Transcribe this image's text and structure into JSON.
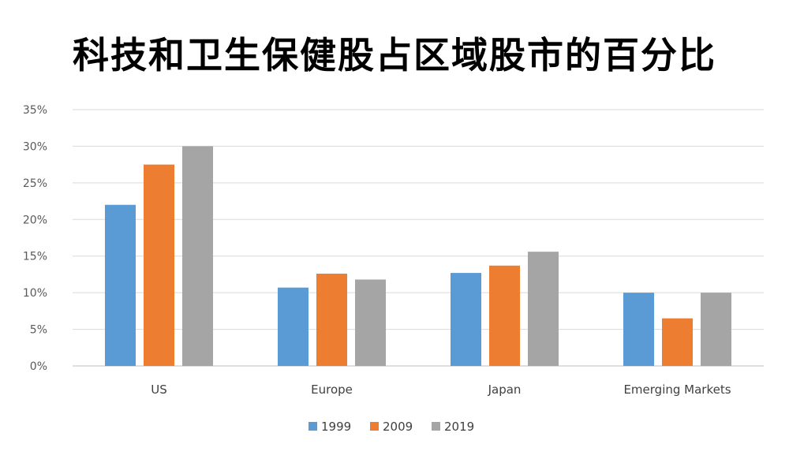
{
  "chart_data": {
    "type": "bar",
    "title": "科技和卫生保健股占区域股市的百分比",
    "categories": [
      "US",
      "Europe",
      "Japan",
      "Emerging Markets"
    ],
    "series": [
      {
        "name": "1999",
        "color": "#5b9bd5",
        "values": [
          22,
          10.7,
          12.7,
          10
        ]
      },
      {
        "name": "2009",
        "color": "#ed7d31",
        "values": [
          27.5,
          12.6,
          13.7,
          6.5
        ]
      },
      {
        "name": "2019",
        "color": "#a5a5a5",
        "values": [
          30,
          11.8,
          15.6,
          10
        ]
      }
    ],
    "yticks": [
      "0%",
      "5%",
      "10%",
      "15%",
      "20%",
      "25%",
      "30%",
      "35%"
    ],
    "ylim": [
      0,
      35
    ],
    "grid": true,
    "legend_position": "bottom"
  }
}
